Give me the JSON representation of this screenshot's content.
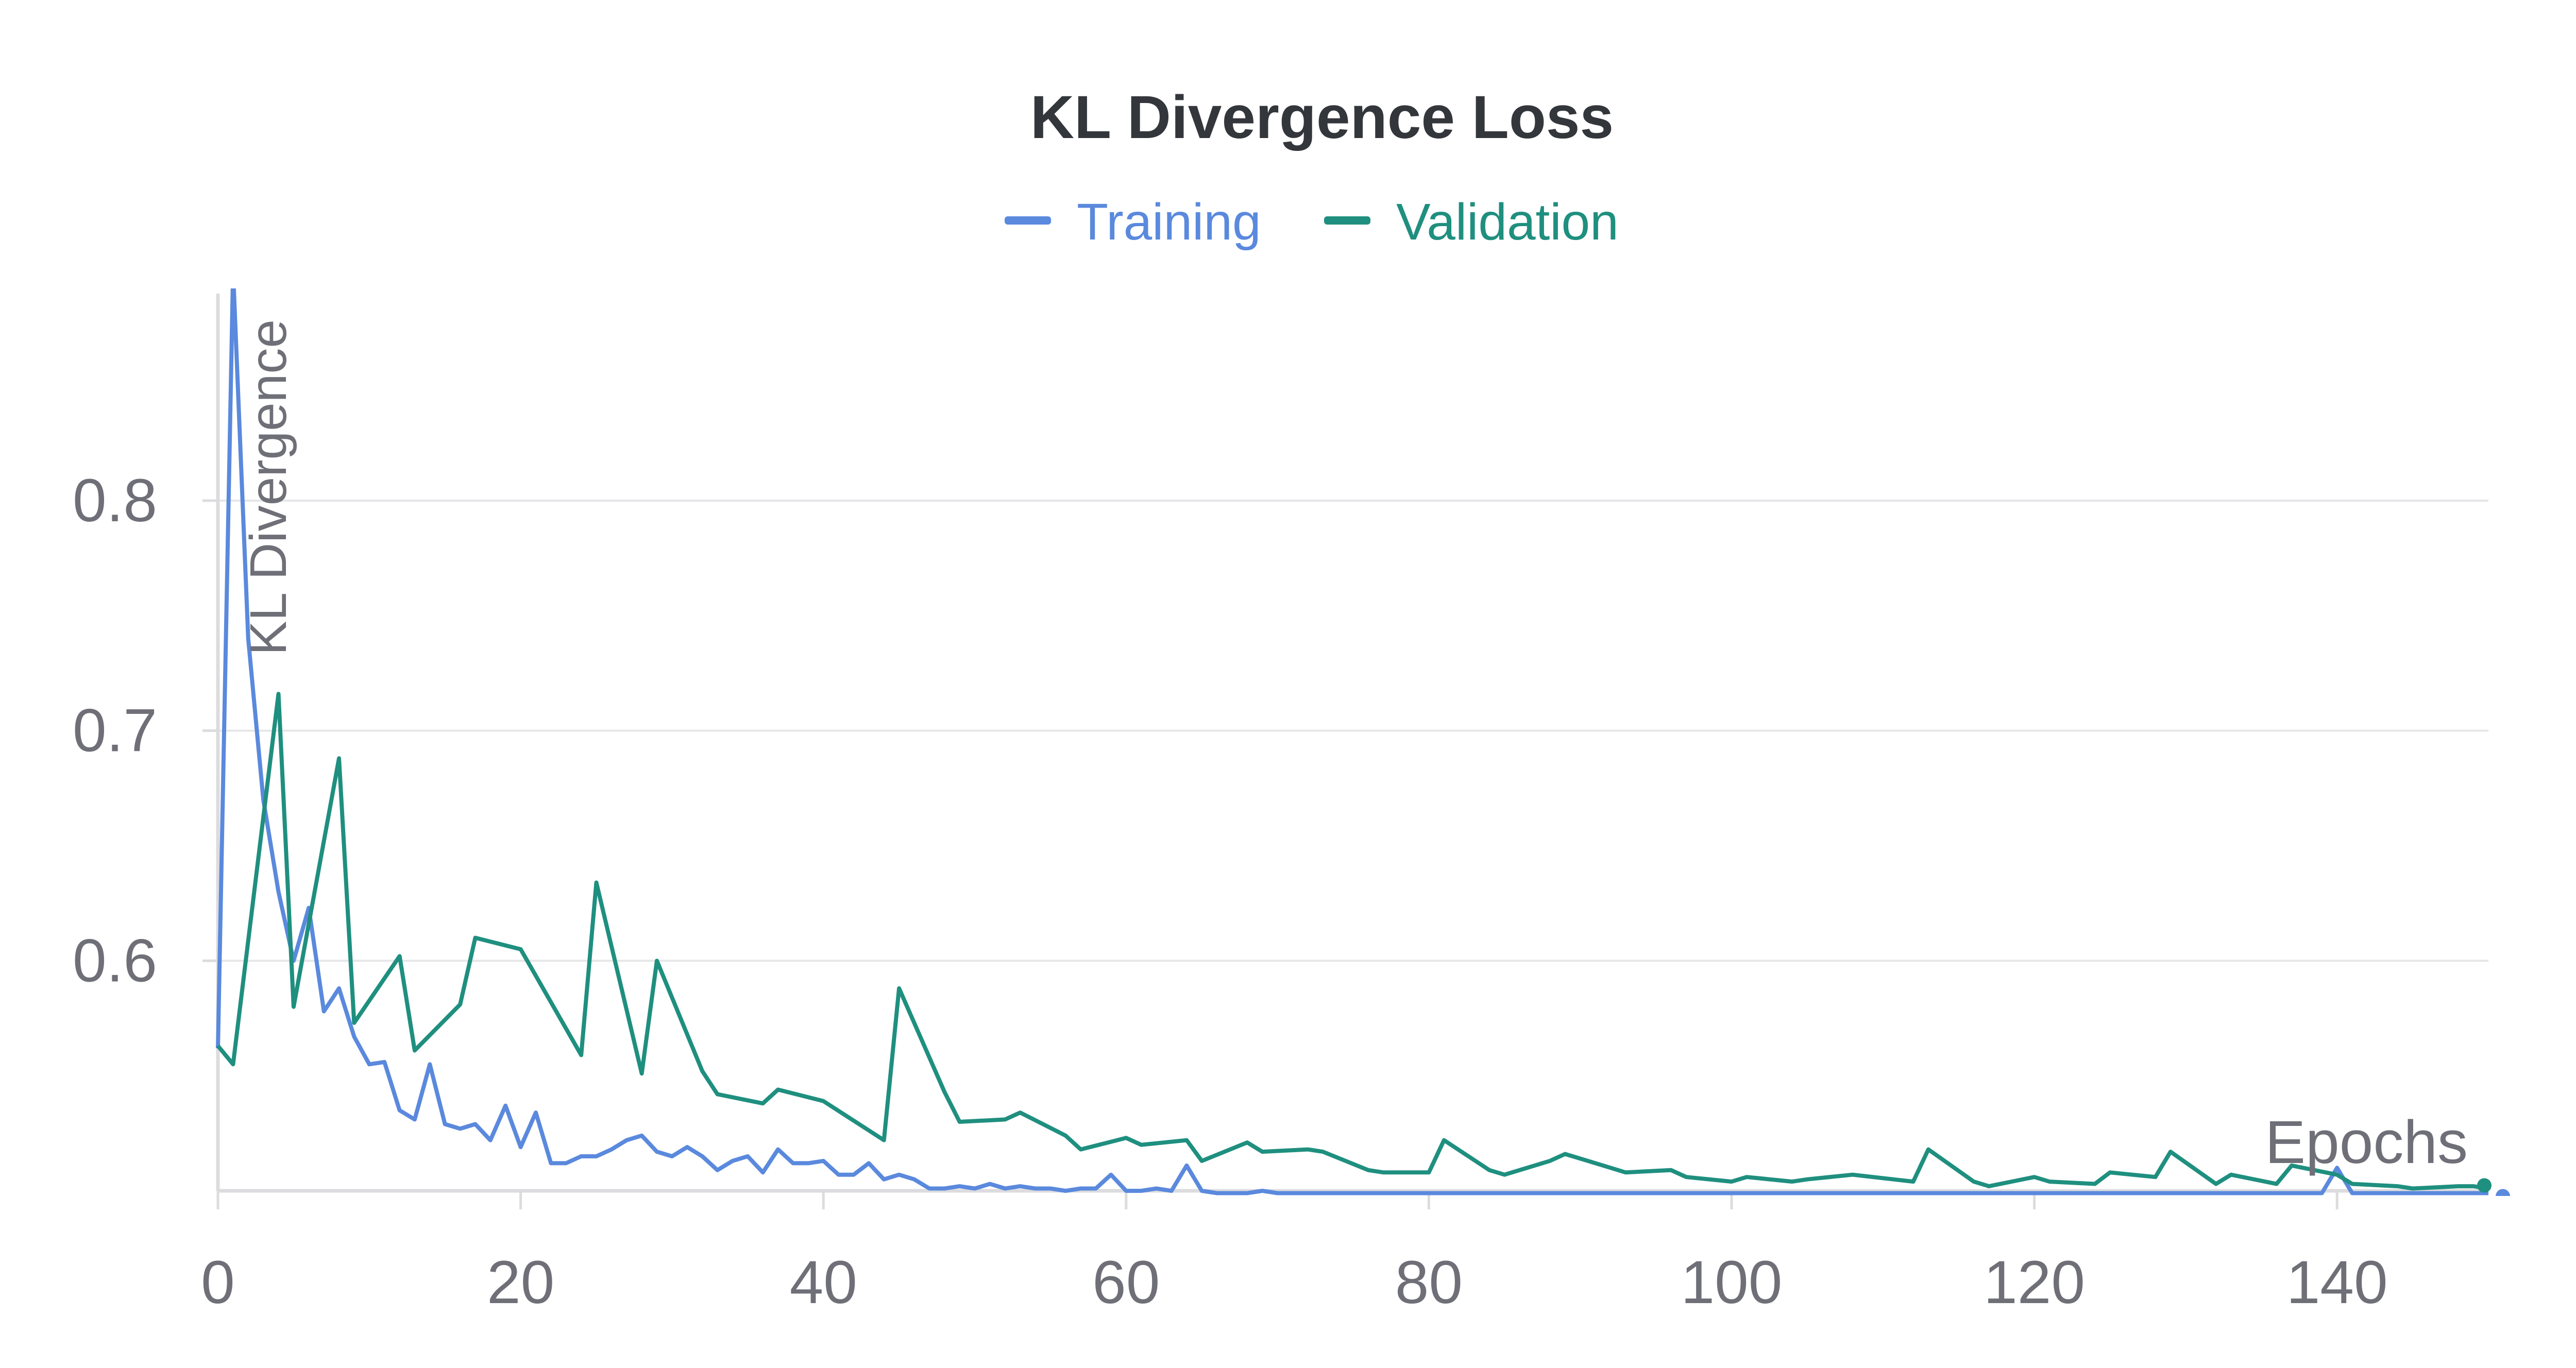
{
  "chart_data": {
    "type": "line",
    "title": "KL Divergence Loss",
    "xlabel": "Epochs",
    "ylabel": "KL Divergence",
    "xlim": [
      0,
      150
    ],
    "ylim": [
      0.5,
      0.89
    ],
    "xticks": [
      0,
      20,
      40,
      60,
      80,
      100,
      120,
      140
    ],
    "yticks": [
      0.6,
      0.7,
      0.8
    ],
    "xtick_labels": [
      "0",
      "20",
      "40",
      "60",
      "80",
      "100",
      "120",
      "140"
    ],
    "ytick_labels": [
      "0.6",
      "0.7",
      "0.8"
    ],
    "grid": "horizontal",
    "legend": "top-center",
    "series": [
      {
        "name": "Training",
        "color": "#5a89dd",
        "points": [
          [
            0,
            0.562
          ],
          [
            1,
            0.9
          ],
          [
            2,
            0.74
          ],
          [
            3,
            0.67
          ],
          [
            4,
            0.63
          ],
          [
            5,
            0.6
          ],
          [
            6,
            0.623
          ],
          [
            7,
            0.578
          ],
          [
            8,
            0.588
          ],
          [
            9,
            0.567
          ],
          [
            10,
            0.555
          ],
          [
            11,
            0.556
          ],
          [
            12,
            0.535
          ],
          [
            13,
            0.531
          ],
          [
            14,
            0.555
          ],
          [
            15,
            0.529
          ],
          [
            16,
            0.527
          ],
          [
            17,
            0.529
          ],
          [
            18,
            0.522
          ],
          [
            19,
            0.537
          ],
          [
            20,
            0.519
          ],
          [
            21,
            0.534
          ],
          [
            22,
            0.512
          ],
          [
            23,
            0.512
          ],
          [
            24,
            0.515
          ],
          [
            25,
            0.515
          ],
          [
            26,
            0.518
          ],
          [
            27,
            0.522
          ],
          [
            28,
            0.524
          ],
          [
            29,
            0.517
          ],
          [
            30,
            0.515
          ],
          [
            31,
            0.519
          ],
          [
            32,
            0.515
          ],
          [
            33,
            0.509
          ],
          [
            34,
            0.513
          ],
          [
            35,
            0.515
          ],
          [
            36,
            0.508
          ],
          [
            37,
            0.518
          ],
          [
            38,
            0.512
          ],
          [
            39,
            0.512
          ],
          [
            40,
            0.513
          ],
          [
            41,
            0.507
          ],
          [
            42,
            0.507
          ],
          [
            43,
            0.512
          ],
          [
            44,
            0.505
          ],
          [
            45,
            0.507
          ],
          [
            46,
            0.505
          ],
          [
            47,
            0.501
          ],
          [
            48,
            0.501
          ],
          [
            49,
            0.502
          ],
          [
            50,
            0.501
          ],
          [
            51,
            0.503
          ],
          [
            52,
            0.501
          ],
          [
            53,
            0.502
          ],
          [
            54,
            0.501
          ],
          [
            55,
            0.501
          ],
          [
            56,
            0.5
          ],
          [
            57,
            0.501
          ],
          [
            58,
            0.501
          ],
          [
            59,
            0.507
          ],
          [
            60,
            0.5
          ],
          [
            61,
            0.5
          ],
          [
            62,
            0.501
          ],
          [
            63,
            0.5
          ],
          [
            64,
            0.511
          ],
          [
            65,
            0.5
          ],
          [
            66,
            0.499
          ],
          [
            67,
            0.499
          ],
          [
            68,
            0.499
          ],
          [
            69,
            0.5
          ],
          [
            70,
            0.499
          ],
          [
            72,
            0.499
          ],
          [
            75,
            0.499
          ],
          [
            78,
            0.499
          ],
          [
            80,
            0.499
          ],
          [
            85,
            0.499
          ],
          [
            90,
            0.499
          ],
          [
            95,
            0.499
          ],
          [
            100,
            0.499
          ],
          [
            110,
            0.499
          ],
          [
            115,
            0.499
          ],
          [
            120,
            0.499
          ],
          [
            125,
            0.499
          ],
          [
            130,
            0.499
          ],
          [
            135,
            0.499
          ],
          [
            139,
            0.499
          ],
          [
            140,
            0.51
          ],
          [
            141,
            0.499
          ],
          [
            145,
            0.499
          ],
          [
            150,
            0.499
          ]
        ]
      },
      {
        "name": "Validation",
        "color": "#1f8f7f",
        "points": [
          [
            0,
            0.563
          ],
          [
            1,
            0.555
          ],
          [
            4,
            0.716
          ],
          [
            5,
            0.58
          ],
          [
            8,
            0.688
          ],
          [
            9,
            0.573
          ],
          [
            12,
            0.602
          ],
          [
            13,
            0.561
          ],
          [
            16,
            0.581
          ],
          [
            17,
            0.61
          ],
          [
            20,
            0.605
          ],
          [
            24,
            0.559
          ],
          [
            25,
            0.634
          ],
          [
            28,
            0.551
          ],
          [
            29,
            0.6
          ],
          [
            32,
            0.552
          ],
          [
            33,
            0.542
          ],
          [
            36,
            0.538
          ],
          [
            37,
            0.544
          ],
          [
            40,
            0.539
          ],
          [
            44,
            0.522
          ],
          [
            45,
            0.588
          ],
          [
            48,
            0.543
          ],
          [
            49,
            0.53
          ],
          [
            52,
            0.531
          ],
          [
            53,
            0.534
          ],
          [
            56,
            0.524
          ],
          [
            57,
            0.518
          ],
          [
            60,
            0.523
          ],
          [
            61,
            0.52
          ],
          [
            64,
            0.522
          ],
          [
            65,
            0.513
          ],
          [
            68,
            0.521
          ],
          [
            69,
            0.517
          ],
          [
            72,
            0.518
          ],
          [
            73,
            0.517
          ],
          [
            76,
            0.509
          ],
          [
            77,
            0.508
          ],
          [
            80,
            0.508
          ],
          [
            81,
            0.522
          ],
          [
            84,
            0.509
          ],
          [
            85,
            0.507
          ],
          [
            88,
            0.513
          ],
          [
            89,
            0.516
          ],
          [
            92,
            0.51
          ],
          [
            93,
            0.508
          ],
          [
            96,
            0.509
          ],
          [
            97,
            0.506
          ],
          [
            100,
            0.504
          ],
          [
            101,
            0.506
          ],
          [
            104,
            0.504
          ],
          [
            105,
            0.505
          ],
          [
            108,
            0.507
          ],
          [
            112,
            0.504
          ],
          [
            113,
            0.518
          ],
          [
            116,
            0.504
          ],
          [
            117,
            0.502
          ],
          [
            120,
            0.506
          ],
          [
            121,
            0.504
          ],
          [
            124,
            0.503
          ],
          [
            125,
            0.508
          ],
          [
            128,
            0.506
          ],
          [
            129,
            0.517
          ],
          [
            132,
            0.503
          ],
          [
            133,
            0.507
          ],
          [
            136,
            0.503
          ],
          [
            137,
            0.511
          ],
          [
            140,
            0.507
          ],
          [
            141,
            0.503
          ],
          [
            144,
            0.502
          ],
          [
            145,
            0.501
          ],
          [
            148,
            0.502
          ],
          [
            149,
            0.502
          ],
          [
            150,
            0.501
          ]
        ]
      }
    ]
  }
}
